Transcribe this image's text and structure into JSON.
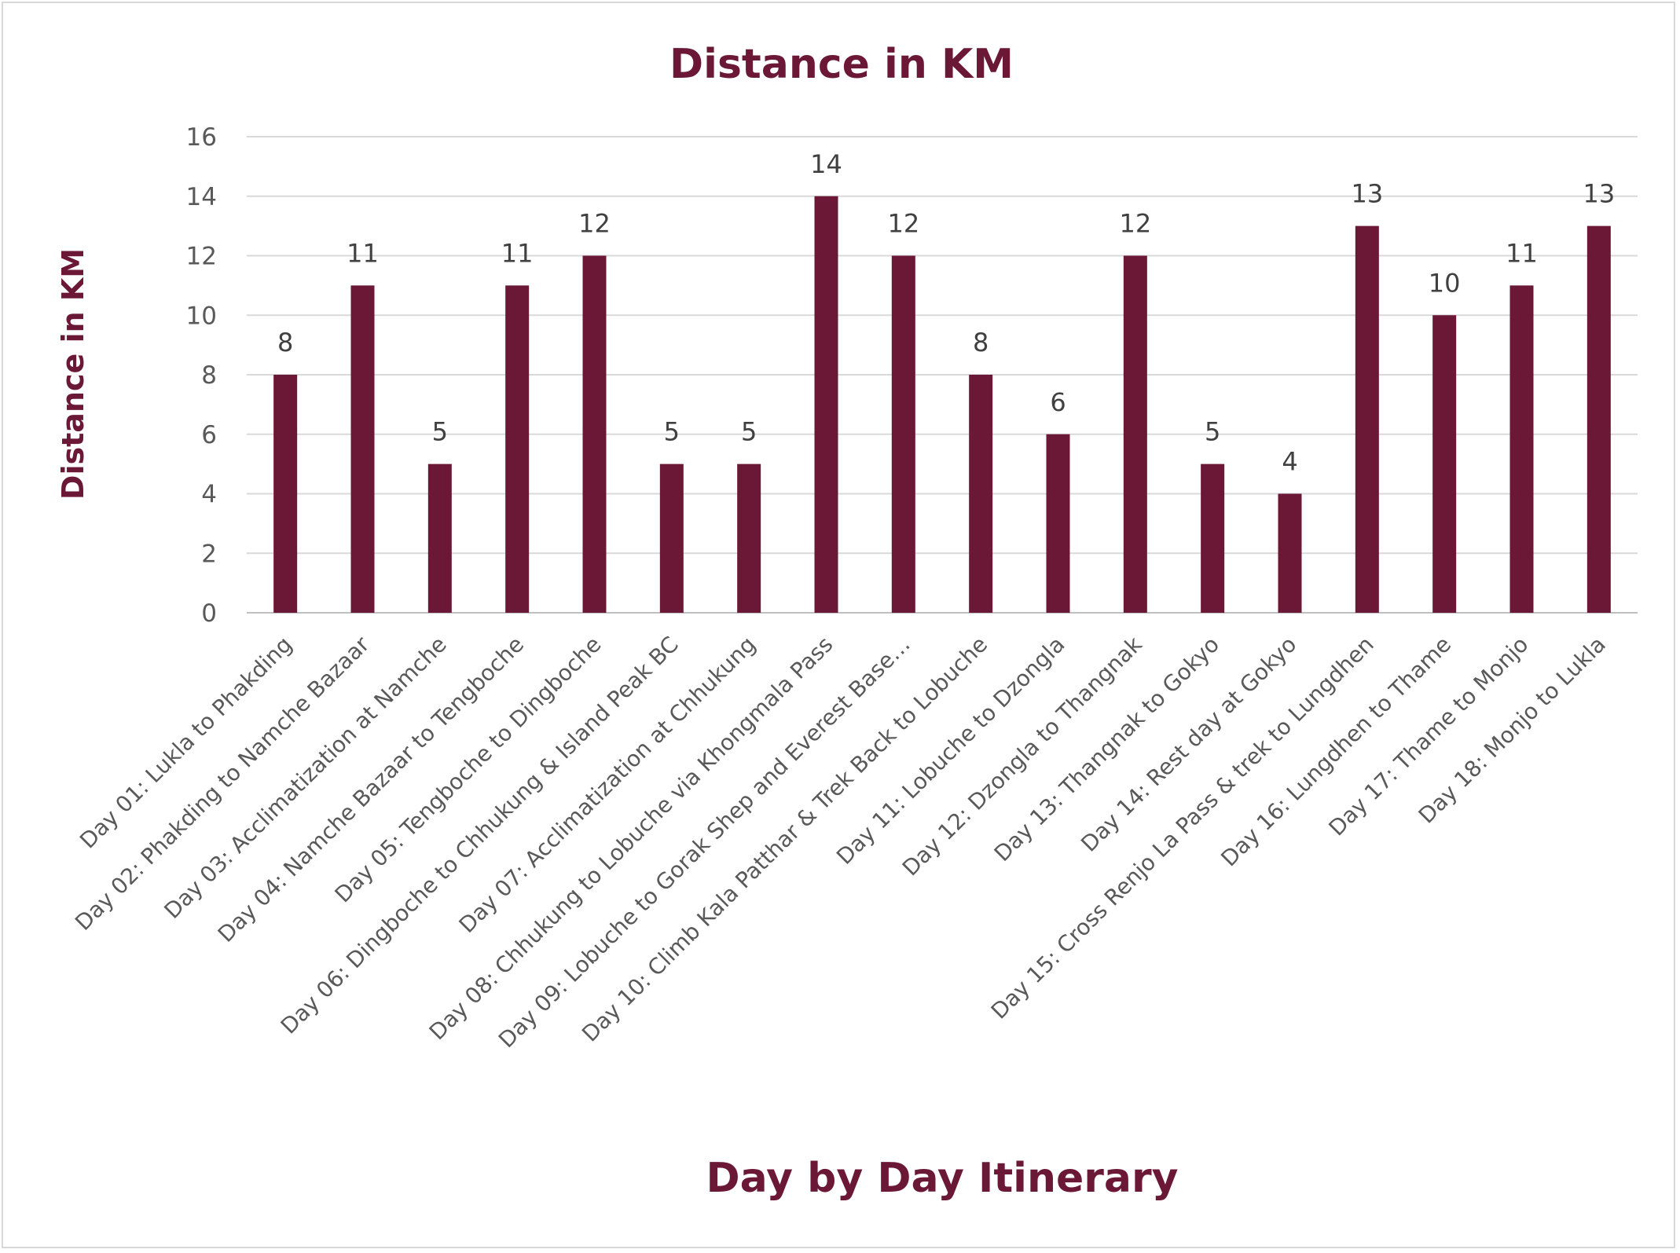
{
  "chart_data": {
    "type": "bar",
    "title": "Distance in KM",
    "xlabel": "Day by Day Itinerary",
    "ylabel": "Distance in KM",
    "ylim": [
      0,
      16
    ],
    "yticks": [
      0,
      2,
      4,
      6,
      8,
      10,
      12,
      14,
      16
    ],
    "grid": true,
    "legend": "none",
    "bar_color": "#6b1836",
    "categories": [
      "Day 01:  Lukla to Phakding",
      "Day 02: Phakding to Namche Bazaar",
      "Day 03: Acclimatization at Namche",
      "Day 04: Namche Bazaar to Tengboche",
      "Day 05: Tengboche to Dingboche",
      "Day 06: Dingboche to Chhukung & Island Peak BC",
      "Day 07: Acclimatization at Chhukung",
      "Day 08: Chhukung to Lobuche via Khongmala Pass",
      "Day 09: Lobuche to Gorak Shep and Everest Base…",
      "Day 10: Climb Kala Patthar & Trek Back to Lobuche",
      "Day 11: Lobuche to Dzongla",
      "Day 12: Dzongla to Thangnak",
      "Day 13: Thangnak to Gokyo",
      "Day 14: Rest day at Gokyo",
      "Day 15: Cross Renjo La Pass & trek to Lungdhen",
      "Day 16: Lungdhen to Thame",
      "Day 17: Thame to Monjo",
      "Day 18: Monjo to Lukla"
    ],
    "values": [
      8,
      11,
      5,
      11,
      12,
      5,
      5,
      14,
      12,
      8,
      6,
      12,
      5,
      4,
      13,
      10,
      11,
      13
    ]
  }
}
